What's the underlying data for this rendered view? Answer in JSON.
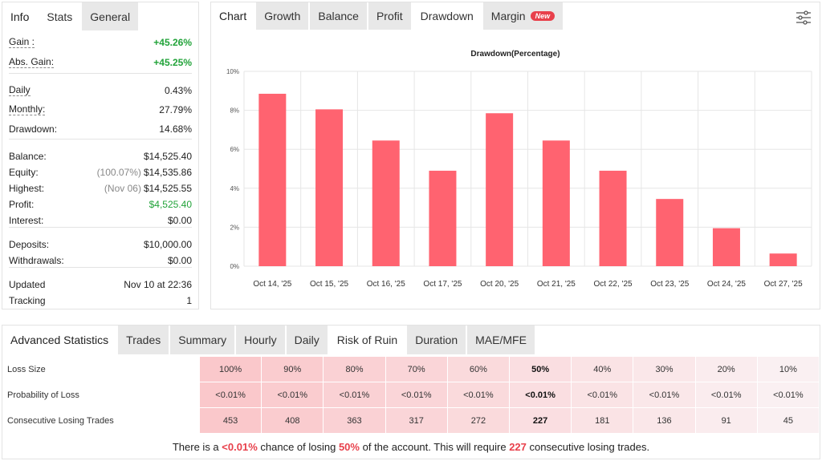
{
  "stats_panel": {
    "title": "Info",
    "tabs": [
      "Stats",
      "General"
    ],
    "active_tab": 0,
    "groups": [
      [
        {
          "label": "Gain :",
          "value": "+45.26%",
          "color": "#22a33a",
          "bold": true,
          "dotted": true
        },
        {
          "label": "Abs. Gain:",
          "value": "+45.25%",
          "color": "#22a33a",
          "bold": true,
          "dotted": true
        }
      ],
      [
        {
          "label": "Daily",
          "value": "0.43%",
          "dotted": true
        },
        {
          "label": "Monthly:",
          "value": "27.79%",
          "dotted": true
        },
        {
          "label": "Drawdown:",
          "value": "14.68%"
        }
      ],
      [
        {
          "label": "Balance:",
          "value": "$14,525.40"
        },
        {
          "label": "Equity:",
          "note": "(100.07%)",
          "value": "$14,535.86"
        },
        {
          "label": "Highest:",
          "note": "(Nov 06)",
          "value": "$14,525.55"
        },
        {
          "label": "Profit:",
          "value": "$4,525.40",
          "color": "#22a33a"
        },
        {
          "label": "Interest:",
          "value": "$0.00"
        }
      ],
      [
        {
          "label": "Deposits:",
          "value": "$10,000.00"
        },
        {
          "label": "Withdrawals:",
          "value": "$0.00"
        }
      ],
      [
        {
          "label": "Updated",
          "value": "Nov 10 at 22:36"
        },
        {
          "label": "Tracking",
          "value": "1"
        }
      ]
    ]
  },
  "chart_panel": {
    "title": "Chart",
    "tabs": [
      "Growth",
      "Balance",
      "Profit",
      "Drawdown",
      "Margin"
    ],
    "active_tab": 3,
    "badge": "New"
  },
  "chart_data": {
    "type": "bar",
    "title": "Drawdown(Percentage)",
    "categories": [
      "Oct 14, '25",
      "Oct 15, '25",
      "Oct 16, '25",
      "Oct 17, '25",
      "Oct 20, '25",
      "Oct 21, '25",
      "Oct 22, '25",
      "Oct 23, '25",
      "Oct 24, '25",
      "Oct 27, '25"
    ],
    "values": [
      8.85,
      8.05,
      6.45,
      4.9,
      7.85,
      6.45,
      4.9,
      3.45,
      1.95,
      0.65
    ],
    "color": "#ff6370",
    "ylim": [
      0,
      10
    ],
    "yticks": [
      {
        "value": 0,
        "label": "0%"
      },
      {
        "value": 2,
        "label": "2%"
      },
      {
        "value": 4,
        "label": "4%"
      },
      {
        "value": 6,
        "label": "6%"
      },
      {
        "value": 8,
        "label": "8%"
      },
      {
        "value": 10,
        "label": "10%"
      }
    ],
    "grid": true
  },
  "advanced_panel": {
    "title": "Advanced Statistics",
    "tabs": [
      "Trades",
      "Summary",
      "Hourly",
      "Daily",
      "Risk of Ruin",
      "Duration",
      "MAE/MFE"
    ],
    "active_tab": 4,
    "table": {
      "rows": [
        {
          "label": "Loss Size",
          "cells": [
            "100%",
            "90%",
            "80%",
            "70%",
            "60%",
            "50%",
            "40%",
            "30%",
            "20%",
            "10%"
          ]
        },
        {
          "label": "Probability of Loss",
          "cells": [
            "<0.01%",
            "<0.01%",
            "<0.01%",
            "<0.01%",
            "<0.01%",
            "<0.01%",
            "<0.01%",
            "<0.01%",
            "<0.01%",
            "<0.01%"
          ]
        },
        {
          "label": "Consecutive Losing Trades",
          "cells": [
            "453",
            "408",
            "363",
            "317",
            "272",
            "227",
            "181",
            "136",
            "91",
            "45"
          ]
        }
      ]
    },
    "footer": [
      "There is a",
      "<0.01%",
      "chance of losing",
      "50%",
      "of the account. This will require",
      "227",
      "consecutive losing trades."
    ]
  }
}
